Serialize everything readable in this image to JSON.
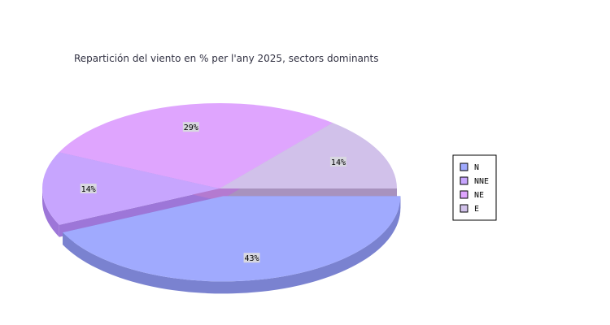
{
  "chart_data": {
    "type": "pie",
    "title": "Repartición del viento en % per l'any 2025, sectors dominants",
    "categories": [
      "N",
      "NNE",
      "NE",
      "E"
    ],
    "values": [
      43,
      14,
      29,
      14
    ],
    "labels": [
      "43%",
      "14%",
      "29%",
      "14%"
    ],
    "exploded": "N",
    "style": "3d",
    "legend": "right",
    "colors": [
      "#a0aafe",
      "#c7a5fe",
      "#dfa5fe",
      "#d1c1ea"
    ],
    "side_colors": [
      "#7a82d0",
      "#9d76d8",
      "#b47ad0",
      "#a892be"
    ]
  }
}
